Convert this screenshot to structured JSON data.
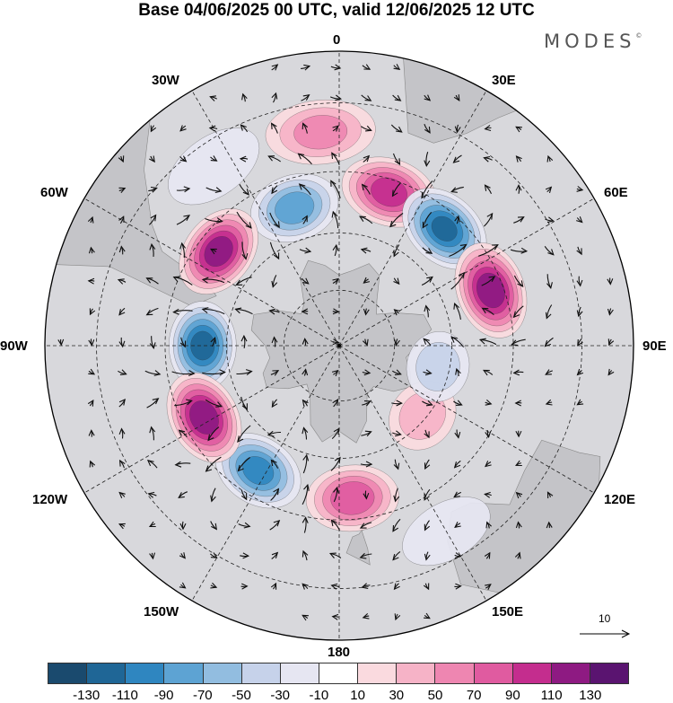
{
  "title": "Base 04/06/2025 00 UTC, valid 12/06/2025 12 UTC",
  "brand": "MODES",
  "brand_mark": "©",
  "map": {
    "projection": "south-polar-stereographic",
    "longitude_labels": {
      "top": "0",
      "top_right": "30E",
      "right_upper": "60E",
      "right": "90E",
      "right_lower": "120E",
      "bottom_right": "150E",
      "bottom": "180",
      "bottom_left": "150W",
      "left_lower": "120W",
      "left": "90W",
      "left_upper": "60W",
      "top_left": "30W"
    },
    "reference_vector_label": "10",
    "colors": {
      "ocean_background": "#d8d8dc",
      "land": "#c4c4c8"
    },
    "anomalies": [
      {
        "lon": -52,
        "lat": -50,
        "value": 120
      },
      {
        "lon": -18,
        "lat": -52,
        "value": -80
      },
      {
        "lon": 18,
        "lat": -48,
        "value": 100
      },
      {
        "lon": 42,
        "lat": -49,
        "value": -110
      },
      {
        "lon": 70,
        "lat": -48,
        "value": 125
      },
      {
        "lon": -90,
        "lat": -54,
        "value": -115
      },
      {
        "lon": -118,
        "lat": -50,
        "value": 125
      },
      {
        "lon": -147,
        "lat": -51,
        "value": -95
      },
      {
        "lon": 175,
        "lat": -50,
        "value": 85
      },
      {
        "lon": 130,
        "lat": -61,
        "value": 40
      },
      {
        "lon": 102,
        "lat": -63,
        "value": -40
      },
      {
        "lon": -5,
        "lat": -36,
        "value": 55
      },
      {
        "lon": -35,
        "lat": -35,
        "value": -25
      },
      {
        "lon": 150,
        "lat": -36,
        "value": -15
      }
    ]
  },
  "colorbar": {
    "ticks": [
      "-130",
      "-110",
      "-90",
      "-70",
      "-50",
      "-30",
      "-10",
      "10",
      "30",
      "50",
      "70",
      "90",
      "110",
      "130"
    ],
    "colors": [
      "#1a4a6e",
      "#1f6696",
      "#2f86c0",
      "#5da3d3",
      "#92bde0",
      "#c6d2ea",
      "#e6e6f2",
      "#ffffff",
      "#fadadf",
      "#f6b3c7",
      "#ee86b1",
      "#e05ba0",
      "#c42d8e",
      "#8e1a82",
      "#5a1470"
    ]
  }
}
